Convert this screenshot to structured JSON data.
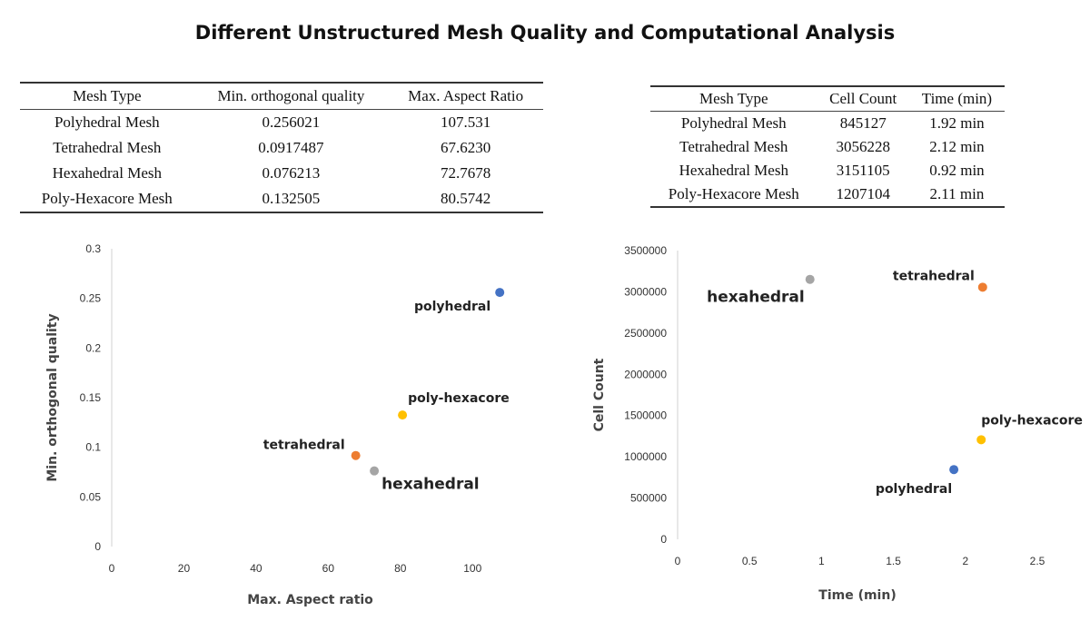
{
  "title": "Different Unstructured Mesh Quality and Computational Analysis",
  "table_quality": {
    "headers": [
      "Mesh Type",
      "Min. orthogonal quality",
      "Max. Aspect Ratio"
    ],
    "rows": [
      [
        "Polyhedral Mesh",
        "0.256021",
        "107.531"
      ],
      [
        "Tetrahedral Mesh",
        "0.0917487",
        "67.6230"
      ],
      [
        "Hexahedral Mesh",
        "0.076213",
        "72.7678"
      ],
      [
        "Poly-Hexacore Mesh",
        "0.132505",
        "80.5742"
      ]
    ]
  },
  "table_compute": {
    "headers": [
      "Mesh Type",
      "Cell Count",
      "Time (min)"
    ],
    "rows": [
      [
        "Polyhedral Mesh",
        "845127",
        "1.92 min"
      ],
      [
        "Tetrahedral Mesh",
        "3056228",
        "2.12 min"
      ],
      [
        "Hexahedral Mesh",
        "3151105",
        "0.92 min"
      ],
      [
        "Poly-Hexacore Mesh",
        "1207104",
        "2.11 min"
      ]
    ]
  },
  "chart_data": [
    {
      "type": "scatter",
      "xlabel": "Max. Aspect ratio",
      "ylabel": "Min. orthogonal quality",
      "xlim": [
        0,
        110
      ],
      "ylim": [
        0,
        0.3
      ],
      "xticks": [
        "0",
        "20",
        "40",
        "60",
        "80",
        "100"
      ],
      "yticks": [
        "0",
        "0.05",
        "0.1",
        "0.15",
        "0.2",
        "0.25",
        "0.3"
      ],
      "grid": false,
      "points": [
        {
          "label": "polyhedral",
          "x": 107.531,
          "y": 0.256021,
          "color": "#4472c4"
        },
        {
          "label": "tetrahedral",
          "x": 67.623,
          "y": 0.0917487,
          "color": "#ed7d31"
        },
        {
          "label": "hexahedral",
          "x": 72.7678,
          "y": 0.076213,
          "color": "#a5a5a5"
        },
        {
          "label": "poly-hexacore",
          "x": 80.5742,
          "y": 0.132505,
          "color": "#ffc000"
        }
      ]
    },
    {
      "type": "scatter",
      "xlabel": "Time (min)",
      "ylabel": "Cell Count",
      "xlim": [
        0,
        2.5
      ],
      "ylim": [
        0,
        3500000
      ],
      "xticks": [
        "0",
        "0.5",
        "1",
        "1.5",
        "2",
        "2.5"
      ],
      "yticks": [
        "0",
        "500000",
        "1000000",
        "1500000",
        "2000000",
        "2500000",
        "3000000",
        "3500000"
      ],
      "grid": false,
      "points": [
        {
          "label": "polyhedral",
          "x": 1.92,
          "y": 845127,
          "color": "#4472c4"
        },
        {
          "label": "tetrahedral",
          "x": 2.12,
          "y": 3056228,
          "color": "#ed7d31"
        },
        {
          "label": "hexahedral",
          "x": 0.92,
          "y": 3151105,
          "color": "#a5a5a5"
        },
        {
          "label": "poly-hexacore",
          "x": 2.11,
          "y": 1207104,
          "color": "#ffc000"
        }
      ]
    }
  ]
}
